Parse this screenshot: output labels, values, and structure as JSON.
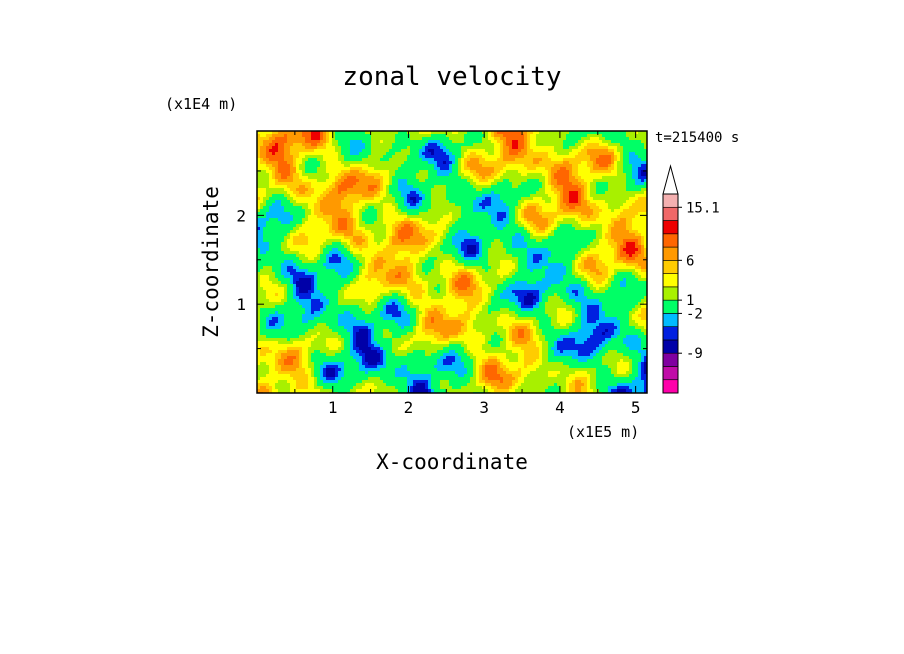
{
  "chart_data": {
    "type": "heatmap",
    "title": "zonal velocity",
    "xlabel": "X-coordinate",
    "ylabel": "Z-coordinate",
    "x_scale_label": "(x1E5 m)",
    "y_scale_label": "(x1E4 m)",
    "time_label": "t=215400 s",
    "xlim": [
      0,
      5.15
    ],
    "ylim": [
      0,
      2.95
    ],
    "x_ticks": [
      {
        "value": 1,
        "label": "1"
      },
      {
        "value": 2,
        "label": "2"
      },
      {
        "value": 3,
        "label": "3"
      },
      {
        "value": 4,
        "label": "4"
      },
      {
        "value": 5,
        "label": "5"
      }
    ],
    "y_ticks": [
      {
        "value": 1,
        "label": "1"
      },
      {
        "value": 2,
        "label": "2"
      }
    ],
    "colorbar": {
      "levels_colors": [
        "#ff00aa",
        "#c00ca8",
        "#8000a0",
        "#0000a8",
        "#0020e0",
        "#00bbff",
        "#00ff66",
        "#a8f000",
        "#ffff00",
        "#ffcc00",
        "#ff9900",
        "#ff6600",
        "#ee0000",
        "#f06868",
        "#f4b0b0"
      ],
      "tick_labels": [
        "15.1",
        "6",
        "1",
        "-2",
        "-9"
      ],
      "extend_top": true
    },
    "grid": false
  }
}
